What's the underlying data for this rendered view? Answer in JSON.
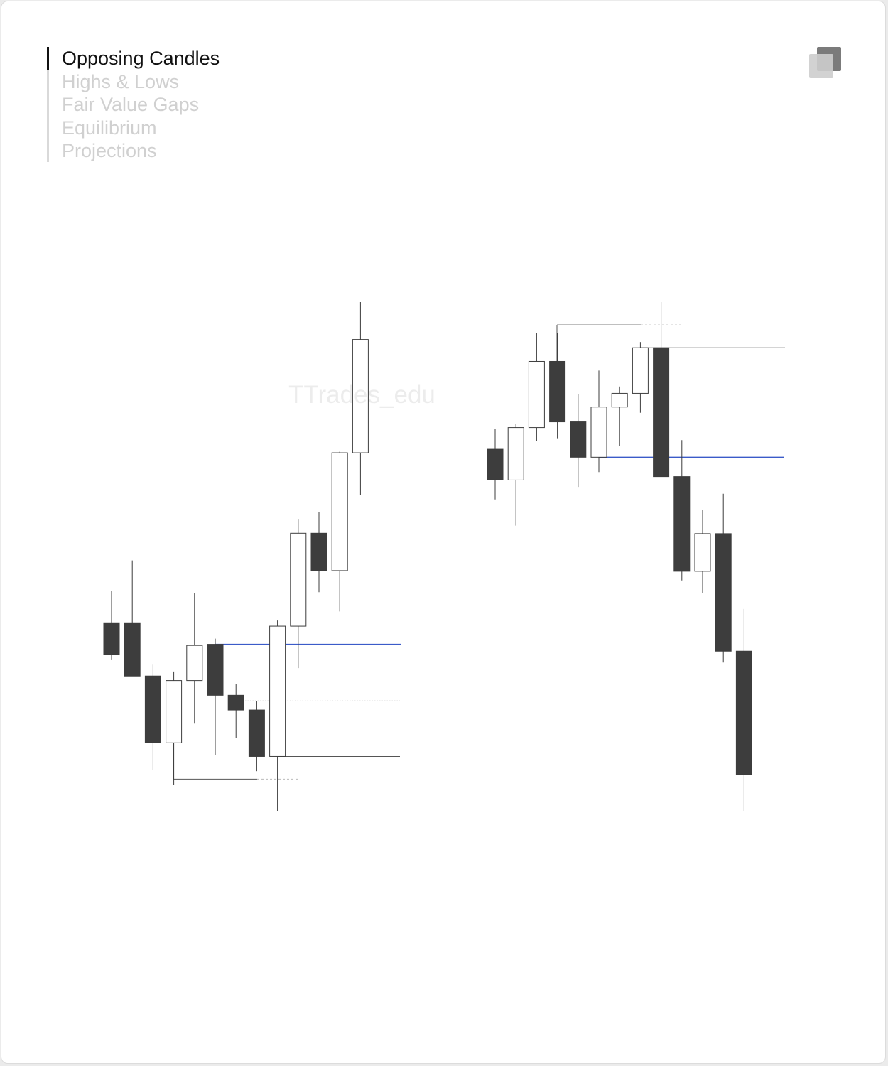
{
  "menu": {
    "items": [
      {
        "label": "Opposing Candles",
        "active": true
      },
      {
        "label": "Highs & Lows",
        "active": false
      },
      {
        "label": "Fair Value Gaps",
        "active": false
      },
      {
        "label": "Equilibrium",
        "active": false
      },
      {
        "label": "Projections",
        "active": false
      }
    ]
  },
  "watermark": "TTrades_edu",
  "colors": {
    "bear": "#3d3d3d",
    "bull": "#ffffff",
    "outline": "#3d3d3d",
    "wick": "#3d3d3d",
    "blue_line": "#3b5bc9",
    "level_line": "#555555",
    "dotted_line": "#777777",
    "dashed_line": "#bbbbbb"
  },
  "chart_data": [
    {
      "type": "candlestick",
      "name": "",
      "candles": [
        {
          "o": 71.3,
          "h": 74.1,
          "l": 68.0,
          "c": 68.5
        },
        {
          "o": 71.3,
          "h": 76.8,
          "l": 66.6,
          "c": 66.6
        },
        {
          "o": 66.6,
          "h": 67.6,
          "l": 58.3,
          "c": 60.7
        },
        {
          "o": 60.7,
          "h": 67.0,
          "l": 57.0,
          "c": 66.2
        },
        {
          "o": 66.2,
          "h": 73.9,
          "l": 62.4,
          "c": 69.3
        },
        {
          "o": 69.4,
          "h": 69.9,
          "l": 59.6,
          "c": 64.9
        },
        {
          "o": 64.9,
          "h": 65.9,
          "l": 61.1,
          "c": 63.6
        },
        {
          "o": 63.6,
          "h": 64.4,
          "l": 58.2,
          "c": 59.5
        },
        {
          "o": 59.5,
          "h": 71.5,
          "l": 54.7,
          "c": 71.0
        },
        {
          "o": 71.0,
          "h": 80.4,
          "l": 67.3,
          "c": 79.2
        },
        {
          "o": 79.2,
          "h": 81.1,
          "l": 74.0,
          "c": 75.9
        },
        {
          "o": 75.9,
          "h": 86.4,
          "l": 72.3,
          "c": 86.3
        },
        {
          "o": 86.3,
          "h": 99.6,
          "l": 82.6,
          "c": 96.3
        }
      ],
      "levels": [
        {
          "kind": "blue",
          "value": 69.4
        },
        {
          "kind": "dotted",
          "value": 64.4
        },
        {
          "kind": "solid",
          "value": 59.5
        },
        {
          "kind": "swing-low",
          "value": 57.5
        }
      ]
    },
    {
      "type": "candlestick",
      "name": "",
      "candles": [
        {
          "o": 86.7,
          "h": 88.5,
          "l": 82.3,
          "c": 84.0
        },
        {
          "o": 84.0,
          "h": 88.9,
          "l": 80.0,
          "c": 88.6
        },
        {
          "o": 88.6,
          "h": 96.9,
          "l": 87.4,
          "c": 94.4
        },
        {
          "o": 94.4,
          "h": 96.9,
          "l": 87.6,
          "c": 89.1
        },
        {
          "o": 89.1,
          "h": 91.5,
          "l": 83.4,
          "c": 86.0
        },
        {
          "o": 86.0,
          "h": 93.6,
          "l": 84.7,
          "c": 90.4
        },
        {
          "o": 90.4,
          "h": 92.2,
          "l": 87.0,
          "c": 91.6
        },
        {
          "o": 91.6,
          "h": 96.1,
          "l": 89.9,
          "c": 95.6
        },
        {
          "o": 95.6,
          "h": 99.6,
          "l": 84.3,
          "c": 84.3
        },
        {
          "o": 84.3,
          "h": 87.5,
          "l": 75.2,
          "c": 76.0
        },
        {
          "o": 76.0,
          "h": 81.4,
          "l": 74.1,
          "c": 79.3
        },
        {
          "o": 79.3,
          "h": 82.8,
          "l": 68.0,
          "c": 69.0
        },
        {
          "o": 69.0,
          "h": 72.7,
          "l": 55.0,
          "c": 58.2
        }
      ],
      "levels": [
        {
          "kind": "blue",
          "value": 86.0
        },
        {
          "kind": "dotted",
          "value": 91.1
        },
        {
          "kind": "solid",
          "value": 95.6
        },
        {
          "kind": "swing-high",
          "value": 97.6
        }
      ]
    }
  ]
}
